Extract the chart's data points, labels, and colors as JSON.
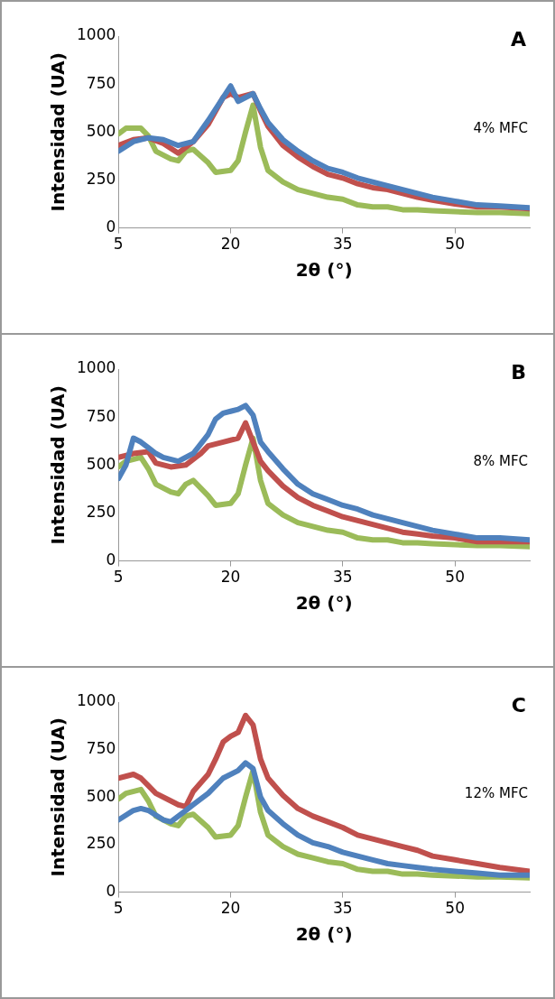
{
  "chart_data": [
    {
      "type": "line",
      "xlabel": "2θ (°)",
      "ylabel": "Intensidad (UA)",
      "annotations": [
        "A",
        "4% MFC"
      ],
      "xlim": [
        5,
        60
      ],
      "xticks": [
        5,
        20,
        35,
        50
      ],
      "ylim": [
        0,
        1000
      ],
      "yticks": [
        0,
        250,
        500,
        750,
        1000
      ],
      "grid": false,
      "legend": false,
      "marker": "none",
      "line_style": "solid",
      "series": [
        {
          "color": "#4f81bd",
          "x": [
            5,
            7,
            9,
            11,
            13,
            15,
            17,
            19,
            20,
            21,
            22,
            23,
            24,
            25,
            27,
            29,
            31,
            33,
            35,
            37,
            39,
            41,
            43,
            45,
            47,
            50,
            53,
            56,
            60
          ],
          "values": [
            400,
            450,
            470,
            460,
            430,
            450,
            560,
            680,
            740,
            660,
            680,
            700,
            620,
            550,
            460,
            400,
            350,
            310,
            290,
            260,
            240,
            220,
            200,
            180,
            160,
            140,
            120,
            115,
            105
          ]
        },
        {
          "color": "#c0504d",
          "x": [
            5,
            7,
            9,
            11,
            13,
            15,
            17,
            19,
            20,
            21,
            22,
            23,
            24,
            25,
            27,
            29,
            31,
            33,
            35,
            37,
            39,
            41,
            43,
            45,
            47,
            50,
            53,
            56,
            60
          ],
          "values": [
            430,
            460,
            470,
            440,
            390,
            450,
            540,
            680,
            700,
            680,
            690,
            700,
            610,
            530,
            430,
            370,
            320,
            280,
            260,
            230,
            210,
            200,
            180,
            160,
            145,
            125,
            110,
            110,
            100
          ]
        },
        {
          "color": "#9bbb59",
          "x": [
            5,
            6,
            8,
            9,
            10,
            12,
            13,
            14,
            15,
            17,
            18,
            20,
            21,
            22,
            23,
            24,
            25,
            27,
            29,
            31,
            33,
            35,
            37,
            39,
            41,
            43,
            45,
            47,
            50,
            53,
            56,
            60
          ],
          "values": [
            490,
            520,
            520,
            480,
            400,
            360,
            350,
            400,
            410,
            340,
            290,
            300,
            350,
            500,
            640,
            420,
            300,
            240,
            200,
            180,
            160,
            150,
            120,
            110,
            110,
            95,
            95,
            90,
            85,
            80,
            80,
            75
          ]
        }
      ]
    },
    {
      "type": "line",
      "xlabel": "2θ (°)",
      "ylabel": "Intensidad (UA)",
      "annotations": [
        "B",
        "8% MFC"
      ],
      "xlim": [
        5,
        60
      ],
      "xticks": [
        5,
        20,
        35,
        50
      ],
      "ylim": [
        0,
        1000
      ],
      "yticks": [
        0,
        250,
        500,
        750,
        1000
      ],
      "grid": false,
      "legend": false,
      "marker": "none",
      "line_style": "solid",
      "series": [
        {
          "color": "#4f81bd",
          "x": [
            5,
            6,
            7,
            8,
            9,
            10,
            11,
            13,
            15,
            17,
            18,
            19,
            20,
            21,
            22,
            23,
            24,
            25,
            27,
            29,
            31,
            33,
            35,
            37,
            39,
            41,
            43,
            45,
            47,
            50,
            53,
            56,
            60
          ],
          "values": [
            430,
            500,
            640,
            620,
            590,
            560,
            540,
            520,
            560,
            660,
            740,
            770,
            780,
            790,
            810,
            760,
            620,
            570,
            480,
            400,
            350,
            320,
            290,
            270,
            240,
            220,
            200,
            180,
            160,
            140,
            120,
            120,
            110
          ]
        },
        {
          "color": "#c0504d",
          "x": [
            5,
            7,
            9,
            10,
            12,
            14,
            16,
            17,
            19,
            21,
            22,
            23,
            24,
            25,
            27,
            29,
            31,
            33,
            35,
            37,
            39,
            41,
            43,
            45,
            47,
            50,
            53,
            56,
            60
          ],
          "values": [
            540,
            560,
            570,
            510,
            490,
            500,
            560,
            600,
            620,
            640,
            720,
            620,
            520,
            470,
            390,
            330,
            290,
            260,
            230,
            210,
            190,
            170,
            150,
            140,
            130,
            120,
            100,
            100,
            100
          ]
        },
        {
          "color": "#9bbb59",
          "x": [
            5,
            6,
            8,
            9,
            10,
            12,
            13,
            14,
            15,
            17,
            18,
            20,
            21,
            22,
            23,
            24,
            25,
            27,
            29,
            31,
            33,
            35,
            37,
            39,
            41,
            43,
            45,
            47,
            50,
            53,
            56,
            60
          ],
          "values": [
            490,
            520,
            540,
            480,
            400,
            360,
            350,
            400,
            420,
            340,
            290,
            300,
            350,
            500,
            640,
            420,
            300,
            240,
            200,
            180,
            160,
            150,
            120,
            110,
            110,
            95,
            95,
            90,
            85,
            80,
            80,
            75
          ]
        }
      ]
    },
    {
      "type": "line",
      "xlabel": "2θ (°)",
      "ylabel": "Intensidad (UA)",
      "annotations": [
        "C",
        "12% MFC"
      ],
      "xlim": [
        5,
        60
      ],
      "xticks": [
        5,
        20,
        35,
        50
      ],
      "ylim": [
        0,
        1000
      ],
      "yticks": [
        0,
        250,
        500,
        750,
        1000
      ],
      "grid": false,
      "legend": false,
      "marker": "none",
      "line_style": "solid",
      "series": [
        {
          "color": "#4f81bd",
          "x": [
            5,
            7,
            8,
            9,
            11,
            12,
            14,
            15,
            17,
            19,
            21,
            22,
            23,
            24,
            25,
            27,
            29,
            31,
            33,
            35,
            37,
            39,
            41,
            43,
            45,
            47,
            50,
            53,
            56,
            60
          ],
          "values": [
            380,
            430,
            440,
            430,
            380,
            370,
            430,
            460,
            520,
            600,
            640,
            680,
            650,
            500,
            430,
            360,
            300,
            260,
            240,
            210,
            190,
            170,
            150,
            140,
            130,
            120,
            110,
            100,
            90,
            90
          ]
        },
        {
          "color": "#c0504d",
          "x": [
            5,
            7,
            8,
            9,
            10,
            12,
            13,
            14,
            15,
            17,
            18,
            19,
            20,
            21,
            22,
            23,
            24,
            25,
            27,
            29,
            31,
            33,
            35,
            37,
            39,
            41,
            43,
            45,
            47,
            50,
            53,
            56,
            60
          ],
          "values": [
            600,
            620,
            600,
            560,
            520,
            480,
            460,
            450,
            530,
            620,
            700,
            790,
            820,
            840,
            930,
            880,
            700,
            600,
            510,
            440,
            400,
            370,
            340,
            300,
            280,
            260,
            240,
            220,
            190,
            170,
            150,
            130,
            110
          ]
        },
        {
          "color": "#9bbb59",
          "x": [
            5,
            6,
            8,
            9,
            10,
            12,
            13,
            14,
            15,
            17,
            18,
            20,
            21,
            22,
            23,
            24,
            25,
            27,
            29,
            31,
            33,
            35,
            37,
            39,
            41,
            43,
            45,
            47,
            50,
            53,
            56,
            60
          ],
          "values": [
            490,
            520,
            540,
            480,
            400,
            360,
            350,
            400,
            410,
            340,
            290,
            300,
            350,
            500,
            640,
            420,
            300,
            240,
            200,
            180,
            160,
            150,
            120,
            110,
            110,
            95,
            95,
            90,
            85,
            80,
            80,
            75
          ]
        }
      ]
    }
  ]
}
